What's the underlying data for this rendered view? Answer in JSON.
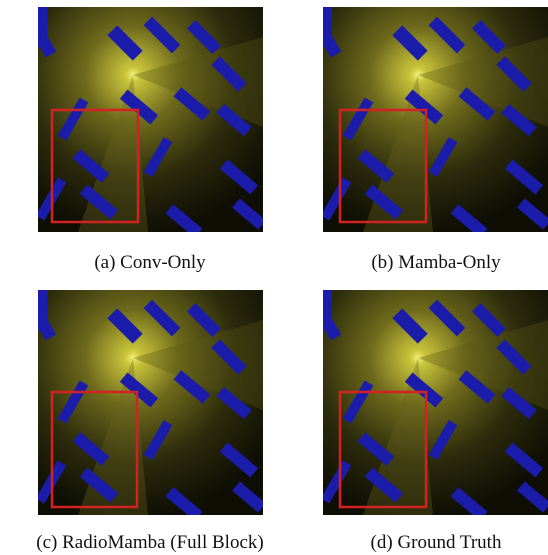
{
  "panels": [
    {
      "caption": "(a) Conv-Only"
    },
    {
      "caption": "(b) Mamba-Only"
    },
    {
      "caption": "(c) RadioMamba (Full Block)"
    },
    {
      "caption": "(d) Ground Truth"
    }
  ]
}
